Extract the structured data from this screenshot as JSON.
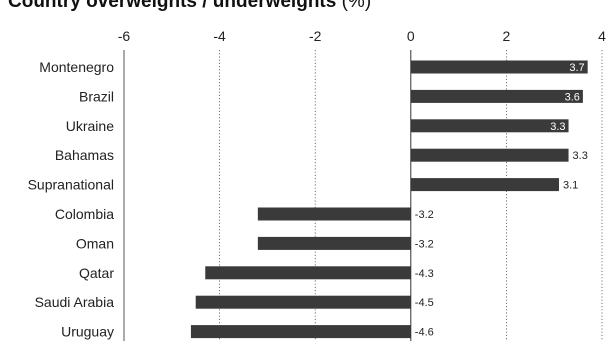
{
  "chart_data": {
    "type": "bar",
    "orientation": "horizontal",
    "title": "Country overweights / underweights",
    "title_unit": "(%)",
    "categories": [
      "Montenegro",
      "Brazil",
      "Ukraine",
      "Bahamas",
      "Supranational",
      "Colombia",
      "Oman",
      "Qatar",
      "Saudi Arabia",
      "Uruguay"
    ],
    "values": [
      3.7,
      3.6,
      3.3,
      3.3,
      3.1,
      -3.2,
      -3.2,
      -4.3,
      -4.5,
      -4.6
    ],
    "data_labels": [
      "3.7",
      "3.6",
      "3.3",
      "3.3",
      "3.1",
      "-3.2",
      "-3.2",
      "-4.3",
      "-4.5",
      "-4.6"
    ],
    "label_inside": [
      true,
      true,
      true,
      false,
      false,
      false,
      false,
      false,
      false,
      false
    ],
    "xlim": [
      -6,
      4
    ],
    "xticks": [
      "-6",
      "-4",
      "-2",
      "0",
      "2",
      "4"
    ],
    "xtick_values": [
      -6,
      -4,
      -2,
      0,
      2,
      4
    ],
    "x_axis_position": "top",
    "grid": "vertical dotted",
    "legend": "none",
    "colors": {
      "bar": "#3a3a3a",
      "text": "#222222",
      "inside_label": "#ffffff",
      "grid": "#555555"
    }
  }
}
